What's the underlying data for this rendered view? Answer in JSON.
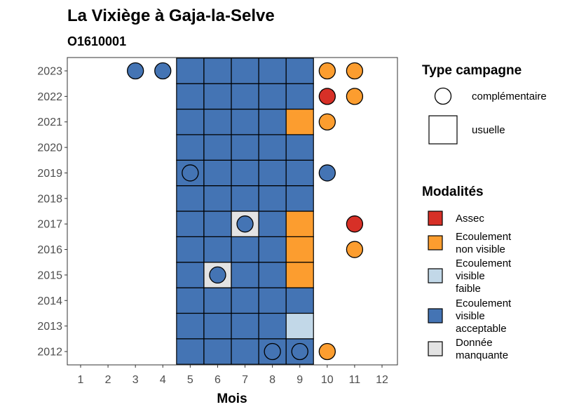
{
  "chart_data": {
    "type": "heatmap",
    "title": "La Vixiège à Gaja-la-Selve",
    "subtitle": "O1610001",
    "xlabel": "Mois",
    "ylabel": "",
    "x_ticks": [
      "1",
      "2",
      "3",
      "4",
      "5",
      "6",
      "7",
      "8",
      "9",
      "10",
      "11",
      "12"
    ],
    "y_ticks": [
      "2012",
      "2013",
      "2014",
      "2015",
      "2016",
      "2017",
      "2018",
      "2019",
      "2020",
      "2021",
      "2022",
      "2023"
    ],
    "legend_campaign": {
      "title": "Type campagne",
      "items": [
        {
          "key": "complementaire",
          "label": "complémentaire",
          "shape": "circle"
        },
        {
          "key": "usuelle",
          "label": "usuelle",
          "shape": "square"
        }
      ]
    },
    "legend_modalites": {
      "title": "Modalités",
      "items": [
        {
          "key": "assec",
          "lines": [
            "Assec"
          ],
          "color": "#d73027"
        },
        {
          "key": "nonvisible",
          "lines": [
            "Ecoulement",
            "non visible"
          ],
          "color": "#fc9d2f"
        },
        {
          "key": "faible",
          "lines": [
            "Ecoulement",
            "visible",
            "faible"
          ],
          "color": "#c2d8e8"
        },
        {
          "key": "acceptable",
          "lines": [
            "Ecoulement",
            "visible",
            "acceptable"
          ],
          "color": "#4474b4"
        },
        {
          "key": "manquante",
          "lines": [
            "Donnée",
            "manquante"
          ],
          "color": "#e3e3e3"
        }
      ]
    },
    "usuelle_cells": {
      "2012": [
        "acceptable",
        "acceptable",
        "acceptable",
        "acceptable",
        "acceptable"
      ],
      "2013": [
        "acceptable",
        "acceptable",
        "acceptable",
        "acceptable",
        "faible"
      ],
      "2014": [
        "acceptable",
        "acceptable",
        "acceptable",
        "acceptable",
        "acceptable"
      ],
      "2015": [
        "acceptable",
        "manquante",
        "acceptable",
        "acceptable",
        "nonvisible"
      ],
      "2016": [
        "acceptable",
        "acceptable",
        "acceptable",
        "acceptable",
        "nonvisible"
      ],
      "2017": [
        "acceptable",
        "acceptable",
        "manquante",
        "acceptable",
        "nonvisible"
      ],
      "2018": [
        "acceptable",
        "acceptable",
        "acceptable",
        "acceptable",
        "acceptable"
      ],
      "2019": [
        "acceptable",
        "acceptable",
        "acceptable",
        "acceptable",
        "acceptable"
      ],
      "2020": [
        "acceptable",
        "acceptable",
        "acceptable",
        "acceptable",
        "acceptable"
      ],
      "2021": [
        "acceptable",
        "acceptable",
        "acceptable",
        "acceptable",
        "nonvisible"
      ],
      "2022": [
        "acceptable",
        "acceptable",
        "acceptable",
        "acceptable",
        "acceptable"
      ],
      "2023": [
        "acceptable",
        "acceptable",
        "acceptable",
        "acceptable",
        "acceptable"
      ]
    },
    "usuelle_months": [
      5,
      6,
      7,
      8,
      9
    ],
    "complementaire_points": [
      {
        "year": 2023,
        "month": 3,
        "modalite": "acceptable"
      },
      {
        "year": 2023,
        "month": 4,
        "modalite": "acceptable"
      },
      {
        "year": 2023,
        "month": 10,
        "modalite": "nonvisible"
      },
      {
        "year": 2023,
        "month": 11,
        "modalite": "nonvisible"
      },
      {
        "year": 2022,
        "month": 10,
        "modalite": "assec"
      },
      {
        "year": 2022,
        "month": 11,
        "modalite": "nonvisible"
      },
      {
        "year": 2021,
        "month": 10,
        "modalite": "nonvisible"
      },
      {
        "year": 2019,
        "month": 5,
        "modalite": "acceptable"
      },
      {
        "year": 2019,
        "month": 10,
        "modalite": "acceptable"
      },
      {
        "year": 2017,
        "month": 7,
        "modalite": "acceptable"
      },
      {
        "year": 2017,
        "month": 11,
        "modalite": "assec"
      },
      {
        "year": 2016,
        "month": 11,
        "modalite": "nonvisible"
      },
      {
        "year": 2015,
        "month": 6,
        "modalite": "acceptable"
      },
      {
        "year": 2012,
        "month": 8,
        "modalite": "acceptable"
      },
      {
        "year": 2012,
        "month": 9,
        "modalite": "acceptable"
      },
      {
        "year": 2012,
        "month": 10,
        "modalite": "nonvisible"
      }
    ]
  }
}
